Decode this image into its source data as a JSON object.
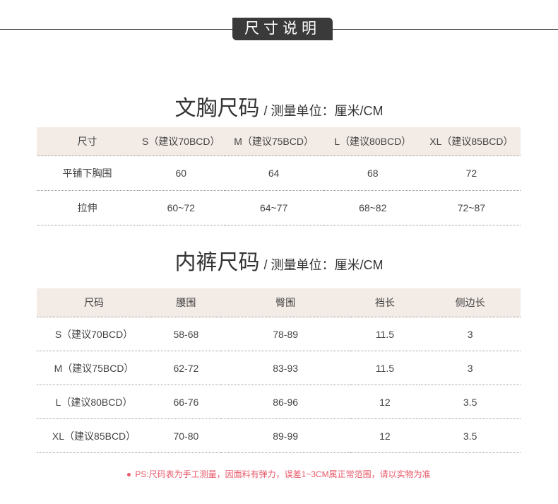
{
  "banner": {
    "title": "尺寸说明"
  },
  "bra": {
    "title": "文胸尺码",
    "unit": "/ 测量单位：厘米/CM",
    "headers": [
      "尺寸",
      "S（建议70BCD）",
      "M（建议75BCD）",
      "L（建议80BCD）",
      "XL（建议85BCD）"
    ],
    "rows": [
      [
        "平铺下胸围",
        "60",
        "64",
        "68",
        "72"
      ],
      [
        "拉伸",
        "60~72",
        "64~77",
        "68~82",
        "72~87"
      ]
    ]
  },
  "panty": {
    "title": "内裤尺码",
    "unit": "/ 测量单位：厘米/CM",
    "headers": [
      "尺码",
      "腰围",
      "臀围",
      "裆长",
      "侧边长"
    ],
    "rows": [
      [
        "S（建议70BCD）",
        "58-68",
        "78-89",
        "11.5",
        "3"
      ],
      [
        "M（建议75BCD）",
        "62-72",
        "83-93",
        "11.5",
        "3"
      ],
      [
        "L（建议80BCD）",
        "66-76",
        "86-96",
        "12",
        "3.5"
      ],
      [
        "XL（建议85BCD）",
        "70-80",
        "89-99",
        "12",
        "3.5"
      ]
    ]
  },
  "note": "PS:尺码表为手工测量，因面料有弹力，误差1~3CM属正常范围，请以实物为准",
  "colors": {
    "header_bg": "#f3ebe6",
    "note": "#e8596a",
    "badge": "#3a3a3a"
  }
}
